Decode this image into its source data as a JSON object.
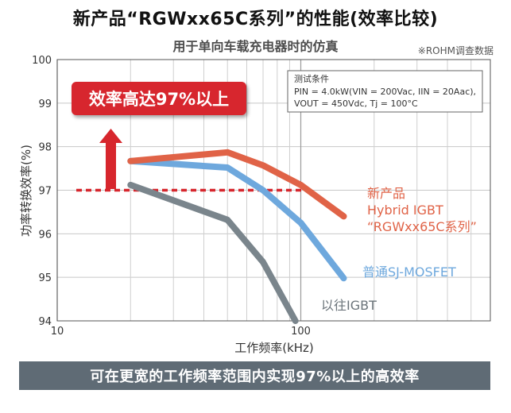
{
  "header": {
    "title": "新产品“RGWxx65C系列”的性能(效率比较)",
    "subtitle": "用于单向车载充电器时的仿真",
    "source_note": "※ROHM调查数据"
  },
  "conditions": {
    "heading": "测试条件",
    "line1": "PIN = 4.0kW(VIN = 200Vac, IIN = 20Aac),",
    "line2": "VOUT = 450Vdc, Tj = 100°C"
  },
  "callout": {
    "label": "效率高达97%以上",
    "color": "#d7262d"
  },
  "banner": {
    "text": "可在更宽的工作频率范围内实现97%以上的高效率"
  },
  "chart_data": {
    "type": "line",
    "xlabel": "工作频率(kHz)",
    "ylabel": "功率转换效率(%)",
    "xscale": "log",
    "xlim": [
      10,
      600
    ],
    "ylim": [
      94,
      100
    ],
    "x_ticks": [
      10,
      100
    ],
    "y_ticks": [
      94,
      95,
      96,
      97,
      98,
      99,
      100
    ],
    "grid": true,
    "reference_line": {
      "y": 97,
      "style": "dashed",
      "color": "#d7262d"
    },
    "series": [
      {
        "name": "新产品 Hybrid IGBT “RGWxx65C系列”",
        "label_lines": [
          "新产品",
          "Hybrid IGBT",
          "“RGWxx65C系列”"
        ],
        "color": "#e06347",
        "x": [
          20,
          50,
          70,
          100,
          150
        ],
        "y": [
          97.67,
          97.87,
          97.57,
          97.12,
          96.4
        ]
      },
      {
        "name": "普通SJ-MOSFET",
        "label_lines": [
          "普通SJ-MOSFET"
        ],
        "color": "#6ea8dd",
        "x": [
          20,
          50,
          70,
          100,
          150
        ],
        "y": [
          97.67,
          97.52,
          97.0,
          96.25,
          94.98
        ]
      },
      {
        "name": "以往IGBT",
        "label_lines": [
          "以往IGBT"
        ],
        "color": "#7a858c",
        "x": [
          20,
          50,
          70,
          95
        ],
        "y": [
          97.12,
          96.32,
          95.35,
          94.0
        ]
      }
    ]
  }
}
